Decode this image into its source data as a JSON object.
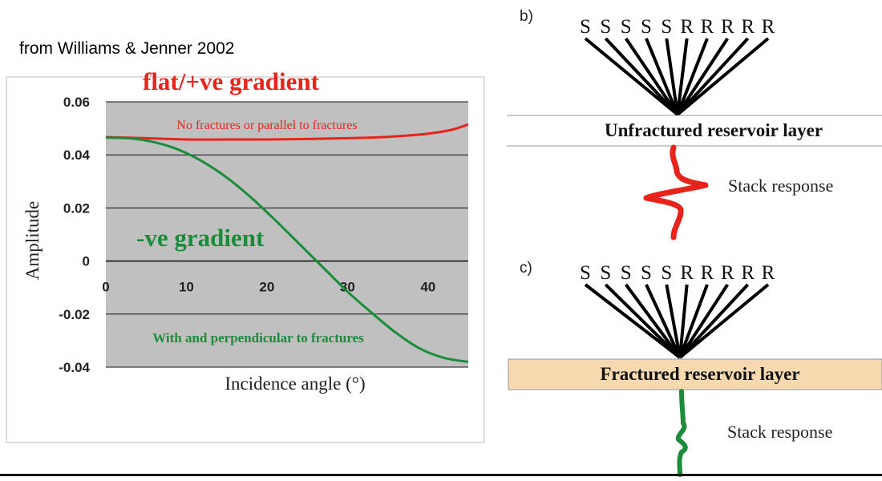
{
  "citation": "from Williams & Jenner 2002",
  "chart_data": {
    "type": "line",
    "ylabel": "Amplitude",
    "xlabel": "Incidence angle (°)",
    "xlim": [
      0,
      45
    ],
    "ylim": [
      -0.04,
      0.06
    ],
    "xticks": [
      0,
      10,
      20,
      30,
      40
    ],
    "yticks": [
      0.06,
      0.04,
      0.02,
      0,
      -0.02,
      -0.04
    ],
    "ytick_labels": [
      "0.06",
      "0.04",
      "0.02",
      "0",
      "-0.02",
      "-0.04"
    ],
    "grid": true,
    "background": "#c0c0c0",
    "series": [
      {
        "key": "red",
        "color": "#e8231c",
        "x": [
          0,
          5,
          10,
          15,
          20,
          25,
          30,
          35,
          40,
          43,
          45
        ],
        "values": [
          0.0467,
          0.0463,
          0.0458,
          0.0458,
          0.0458,
          0.046,
          0.0463,
          0.0468,
          0.048,
          0.0495,
          0.0515
        ]
      },
      {
        "key": "green",
        "color": "#1a8c3a",
        "x": [
          0,
          3,
          6,
          9,
          12,
          15,
          18,
          21,
          24,
          27,
          30,
          33,
          36,
          39,
          42,
          45
        ],
        "values": [
          0.0465,
          0.0462,
          0.0448,
          0.042,
          0.0375,
          0.0315,
          0.024,
          0.0155,
          0.0065,
          -0.0025,
          -0.0115,
          -0.0195,
          -0.027,
          -0.033,
          -0.0365,
          -0.038
        ]
      }
    ],
    "annotations": {
      "flat_gradient": "flat/+ve gradient",
      "neg_gradient": "-ve gradient",
      "no_fractures": "No fractures or parallel to fractures",
      "perpendicular": "With and perpendicular to fractures"
    }
  },
  "panel_b": {
    "label": "b)",
    "letters": [
      "S",
      "S",
      "S",
      "S",
      "S",
      "R",
      "R",
      "R",
      "R",
      "R"
    ],
    "layer_label": "Unfractured reservoir layer",
    "stack_label": "Stack response",
    "wavelet_color": "#e8231c"
  },
  "panel_c": {
    "label": "c)",
    "letters": [
      "S",
      "S",
      "S",
      "S",
      "S",
      "R",
      "R",
      "R",
      "R",
      "R"
    ],
    "layer_label": "Fractured reservoir layer",
    "layer_fill": "#f7d9b0",
    "stack_label": "Stack response",
    "wavelet_color": "#1a8c3a"
  }
}
